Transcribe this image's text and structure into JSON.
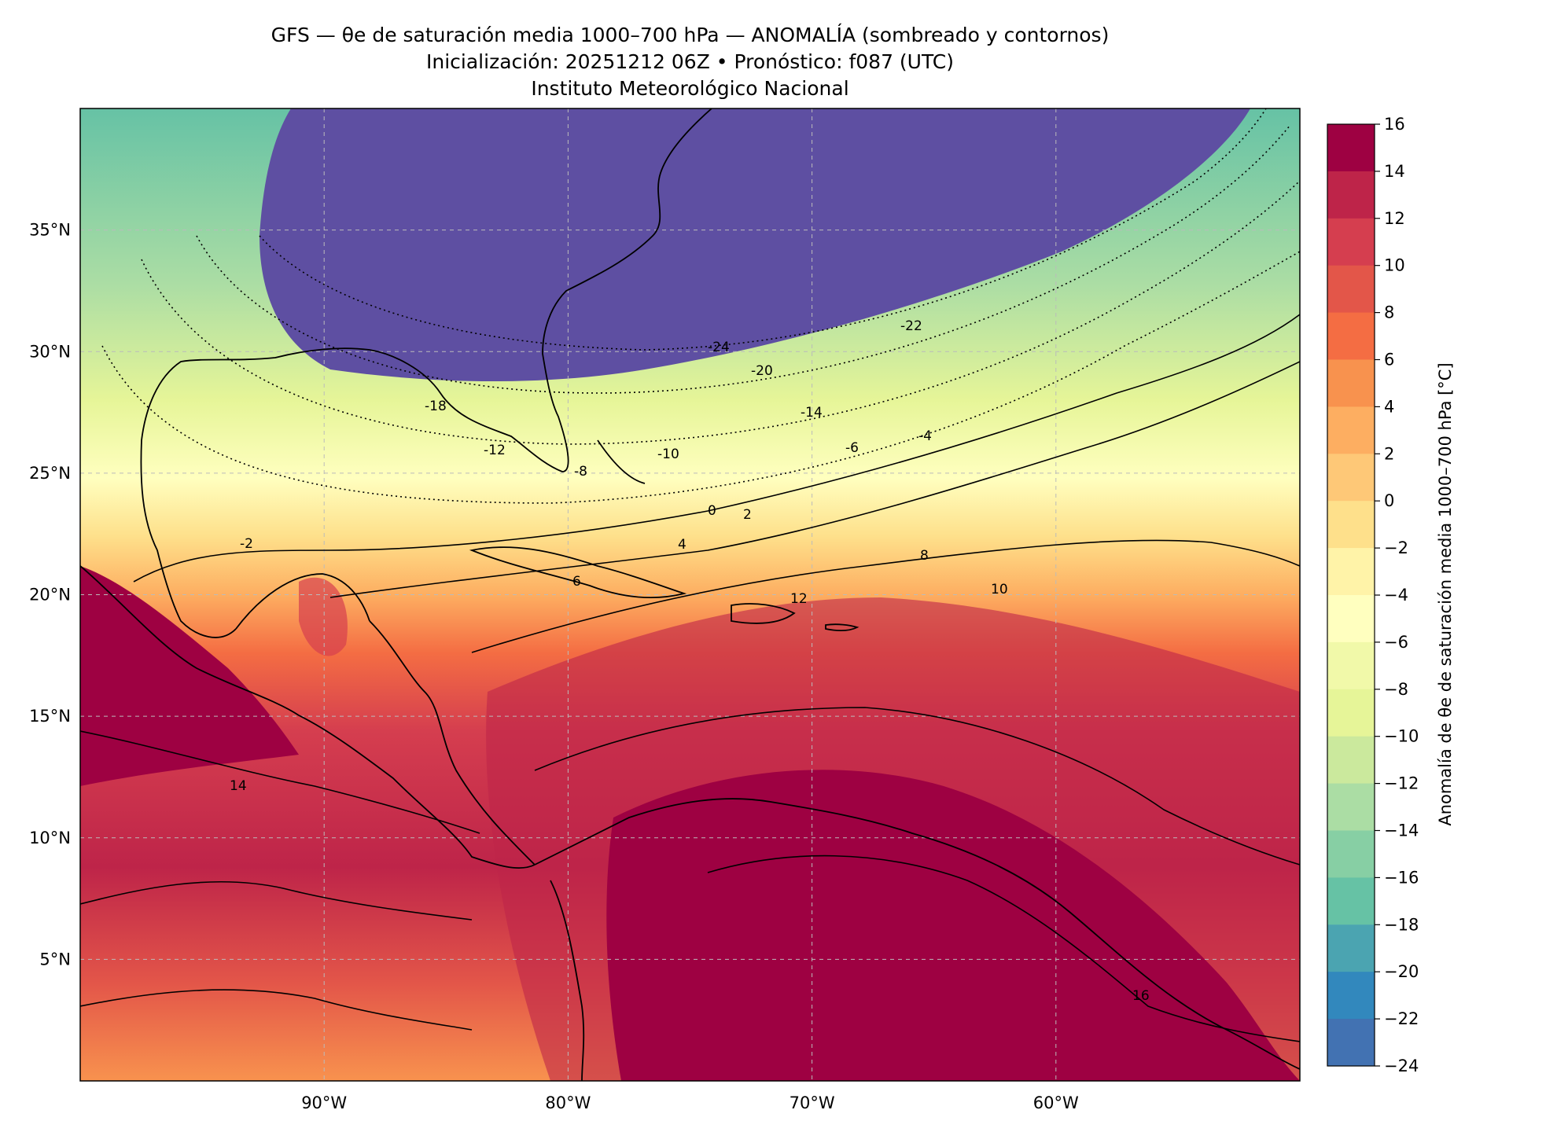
{
  "header": {
    "title_line1": "GFS — θe de saturación media 1000–700 hPa — ANOMALÍA (sombreado y contornos)",
    "title_line2": "Inicialización: 20251212 06Z   •   Pronóstico: f087 (UTC)",
    "title_line3": "Instituto Meteorológico Nacional"
  },
  "map": {
    "lat_ticks": [
      "35°N",
      "30°N",
      "25°N",
      "20°N",
      "15°N",
      "10°N",
      "5°N"
    ],
    "lon_ticks": [
      "90°W",
      "80°W",
      "70°W",
      "60°W"
    ],
    "extent": {
      "lon_min": -100,
      "lon_max": -50,
      "lat_min": 0,
      "lat_max": 40
    },
    "contour_labels": [
      "-24",
      "-22",
      "-20",
      "-18",
      "-14",
      "-12",
      "-10",
      "-8",
      "-6",
      "-4",
      "-2",
      "0",
      "2",
      "4",
      "6",
      "8",
      "10",
      "12",
      "14",
      "16"
    ]
  },
  "colorbar": {
    "label": "Anomalía de θe de saturación media 1000–700 hPa [°C]",
    "ticks": [
      "16",
      "14",
      "12",
      "10",
      "8",
      "6",
      "4",
      "2",
      "0",
      "−2",
      "−4",
      "−6",
      "−8",
      "−10",
      "−12",
      "−14",
      "−16",
      "−18",
      "−20",
      "−22",
      "−24"
    ],
    "colors_top_to_bottom": [
      "#9e0142",
      "#be2449",
      "#d53e4f",
      "#e35649",
      "#f46d43",
      "#f8924e",
      "#fdae61",
      "#fec877",
      "#fee08b",
      "#fff3a8",
      "#ffffbf",
      "#f1f9a9",
      "#e6f598",
      "#cbe99d",
      "#abdda4",
      "#87cfa4",
      "#66c2a5",
      "#4ba4b1",
      "#3288bd",
      "#4272b2",
      "#5e4fa2"
    ]
  }
}
